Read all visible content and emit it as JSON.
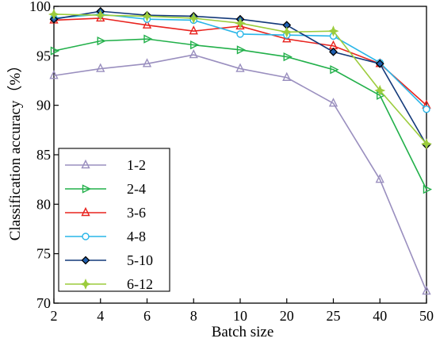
{
  "chart_data": {
    "type": "line",
    "xlabel": "Batch size",
    "ylabel": "Classification accuracy（%）",
    "categories": [
      "2",
      "4",
      "6",
      "8",
      "10",
      "20",
      "25",
      "40",
      "50"
    ],
    "ylim": [
      70,
      100
    ],
    "yticks": [
      "70",
      "75",
      "80",
      "85",
      "90",
      "95",
      "100"
    ],
    "grid": false,
    "legend_position": "bottom-left",
    "series": [
      {
        "name": "1-2",
        "color": "#9a8fbf",
        "marker": "triangle-up",
        "values": [
          93.0,
          93.7,
          94.2,
          95.1,
          93.7,
          92.8,
          90.2,
          82.5,
          71.2
        ]
      },
      {
        "name": "2-4",
        "color": "#22b04a",
        "marker": "triangle-right",
        "values": [
          95.5,
          96.5,
          96.7,
          96.1,
          95.6,
          94.9,
          93.6,
          91.0,
          81.5
        ]
      },
      {
        "name": "3-6",
        "color": "#e8231e",
        "marker": "triangle-up",
        "values": [
          98.6,
          98.8,
          98.1,
          97.5,
          98.0,
          96.7,
          96.0,
          94.2,
          90.0
        ]
      },
      {
        "name": "4-8",
        "color": "#29b6e8",
        "marker": "circle",
        "values": [
          98.8,
          99.2,
          98.7,
          98.6,
          97.2,
          97.1,
          97.0,
          94.3,
          89.6
        ]
      },
      {
        "name": "5-10",
        "color": "#143a7a",
        "marker": "diamond",
        "values": [
          98.7,
          99.5,
          99.1,
          99.0,
          98.7,
          98.1,
          95.4,
          94.2,
          86.0
        ]
      },
      {
        "name": "6-12",
        "color": "#9ccc3c",
        "marker": "star",
        "values": [
          99.2,
          99.1,
          99.0,
          98.8,
          98.3,
          97.4,
          97.5,
          91.5,
          86.1
        ]
      }
    ]
  }
}
